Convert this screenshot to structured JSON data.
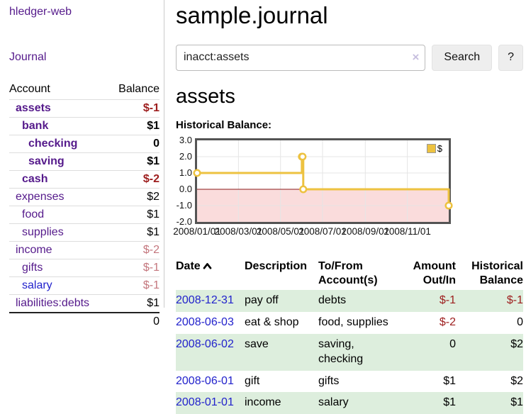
{
  "app": {
    "brand": "hledger-web",
    "nav_journal": "Journal"
  },
  "colors": {
    "link_purple": "#551a8b",
    "link_blue": "#2222cc",
    "negative": "#9d1d1d",
    "negative_soft": "#c4767d",
    "row_stripe_green": "#ddeedd",
    "sidebar_divider": "#cccccc"
  },
  "sidebar": {
    "header": {
      "account": "Account",
      "balance": "Balance"
    },
    "accounts": [
      {
        "name": "assets",
        "depth": 1,
        "balance": "$-1",
        "bold": true,
        "negative": true,
        "link_color": "purple"
      },
      {
        "name": "bank",
        "depth": 2,
        "balance": "$1",
        "bold": true,
        "negative": false,
        "link_color": "purple"
      },
      {
        "name": "checking",
        "depth": 3,
        "balance": "0",
        "bold": true,
        "negative": false,
        "link_color": "purple"
      },
      {
        "name": "saving",
        "depth": 3,
        "balance": "$1",
        "bold": true,
        "negative": false,
        "link_color": "purple"
      },
      {
        "name": "cash",
        "depth": 2,
        "balance": "$-2",
        "bold": true,
        "negative": true,
        "link_color": "purple"
      },
      {
        "name": "expenses",
        "depth": 1,
        "balance": "$2",
        "bold": false,
        "negative": false,
        "link_color": "purple"
      },
      {
        "name": "food",
        "depth": 2,
        "balance": "$1",
        "bold": false,
        "negative": false,
        "link_color": "purple"
      },
      {
        "name": "supplies",
        "depth": 2,
        "balance": "$1",
        "bold": false,
        "negative": false,
        "link_color": "purple"
      },
      {
        "name": "income",
        "depth": 1,
        "balance": "$-2",
        "bold": false,
        "negative": true,
        "link_color": "purple"
      },
      {
        "name": "gifts",
        "depth": 2,
        "balance": "$-1",
        "bold": false,
        "negative": true,
        "link_color": "purple"
      },
      {
        "name": "salary",
        "depth": 2,
        "balance": "$-1",
        "bold": false,
        "negative": true,
        "link_color": "blue"
      },
      {
        "name": "liabilities:debts",
        "depth": 1,
        "balance": "$1",
        "bold": false,
        "negative": false,
        "link_color": "purple"
      }
    ],
    "total": "0"
  },
  "header": {
    "title": "sample.journal"
  },
  "search": {
    "value": "inacct:assets",
    "clear_icon": "×",
    "button_label": "Search",
    "help_label": "?"
  },
  "account_page": {
    "title": "assets",
    "chart_label": "Historical Balance:"
  },
  "chart_data": {
    "type": "line",
    "style": "step",
    "title": "Historical Balance:",
    "series": [
      {
        "name": "$",
        "color": "#edc240",
        "marker_fill": "#ffffff",
        "points": [
          {
            "date": "2008-01-01",
            "value": 1
          },
          {
            "date": "2008-06-01",
            "value": 2
          },
          {
            "date": "2008-06-02",
            "value": 2
          },
          {
            "date": "2008-06-03",
            "value": 0
          },
          {
            "date": "2008-12-31",
            "value": -1
          }
        ]
      }
    ],
    "x_range": [
      "2008-01-01",
      "2008-12-31"
    ],
    "x_ticks": [
      "2008/01/01",
      "2008/03/01",
      "2008/05/01",
      "2008/07/01",
      "2008/09/01",
      "2008/11/01"
    ],
    "y_range": [
      -2,
      3
    ],
    "y_ticks": [
      3,
      2,
      1,
      0,
      -1,
      -2
    ],
    "y_tick_labels": [
      "3.0",
      "2.0",
      "1.0",
      "0.0",
      "-1.0",
      "-2.0"
    ],
    "grid": true,
    "grid_color": "#e5e5e5",
    "border_color": "#545454",
    "negative_region_color": "#fadcdc",
    "zero_line_color": "#8b1a1a",
    "legend_position": "top-right",
    "legend": "$"
  },
  "register": {
    "columns": [
      {
        "label": "Date",
        "sort": "ascending",
        "sort_icon": "chevron-up-icon"
      },
      {
        "label": "Description"
      },
      {
        "label": "To/From Account(s)"
      },
      {
        "label": "Amount Out/In"
      },
      {
        "label": "Historical Balance"
      }
    ],
    "rows": [
      {
        "date": "2008-12-31",
        "description": "pay off",
        "accounts": "debts",
        "amount": "$-1",
        "amount_negative": true,
        "balance": "$-1",
        "balance_negative": true
      },
      {
        "date": "2008-06-03",
        "description": "eat & shop",
        "accounts": "food, supplies",
        "amount": "$-2",
        "amount_negative": true,
        "balance": "0",
        "balance_negative": false
      },
      {
        "date": "2008-06-02",
        "description": "save",
        "accounts": "saving, checking",
        "amount": "0",
        "amount_negative": false,
        "balance": "$2",
        "balance_negative": false
      },
      {
        "date": "2008-06-01",
        "description": "gift",
        "accounts": "gifts",
        "amount": "$1",
        "amount_negative": false,
        "balance": "$2",
        "balance_negative": false
      },
      {
        "date": "2008-01-01",
        "description": "income",
        "accounts": "salary",
        "amount": "$1",
        "amount_negative": false,
        "balance": "$1",
        "balance_negative": false
      }
    ]
  }
}
